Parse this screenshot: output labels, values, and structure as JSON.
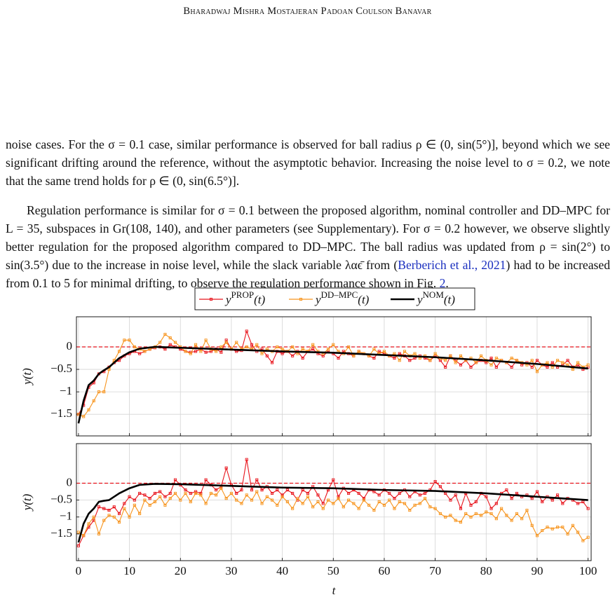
{
  "header": {
    "title": "Bharadwaj Mishra Mostajeran Padoan Coulson Banavar"
  },
  "paragraphs": [
    [
      "noise cases. For the σ = 0.1 case, similar performance is observed for ball radius ρ ∈ (0, sin(5°)], beyond which we see significant drifting around the reference, without the asymptotic behavior. Increasing the noise level to σ = 0.2, we note that the same trend holds for ρ ∈ (0, sin(6.5°)]."
    ],
    [
      "Regulation performance is similar for σ = 0.1 between the proposed algorithm, nominal controller and DD–MPC for L = 35, subspaces in Gr(108, 140), and other parameters (see Supplementary). For σ = 0.2 however, we observe slightly better regulation for the proposed algorithm compared to DD–MPC. The ball radius was updated from ρ = sin(2°) to sin(3.5°) due to the increase in noise level, while the slack variable λαϵ̄ from (",
      "Berberich et al., 2021",
      ") had to be increased from 0.1 to 5 for minimal drifting, to observe the regulation performance shown in Fig. ",
      "2",
      "."
    ]
  ],
  "chart_data": [
    {
      "type": "line",
      "ylabel": "y(t)",
      "legend": "top",
      "grid": true,
      "xtick_labels": false,
      "hline": 0,
      "hline_color": "#e8141c",
      "xlim": [
        -0.4,
        100.6
      ],
      "ylim": [
        -1.98,
        0.67
      ],
      "xticks": [
        0,
        10,
        20,
        30,
        40,
        50,
        60,
        70,
        80,
        90,
        100
      ],
      "yticks": [
        0,
        {
          "value": -0.5,
          "label": "−0.5"
        },
        {
          "value": -1,
          "label": "−1"
        },
        {
          "value": -1.5,
          "label": "−1.5"
        }
      ],
      "x": [
        0,
        1,
        2,
        3,
        4,
        5,
        6,
        7,
        8,
        9,
        10,
        11,
        12,
        13,
        14,
        15,
        16,
        17,
        18,
        19,
        20,
        21,
        22,
        23,
        24,
        25,
        26,
        27,
        28,
        29,
        30,
        31,
        32,
        33,
        34,
        35,
        36,
        37,
        38,
        39,
        40,
        41,
        42,
        43,
        44,
        45,
        46,
        47,
        48,
        49,
        50,
        51,
        52,
        53,
        54,
        55,
        56,
        57,
        58,
        59,
        60,
        61,
        62,
        63,
        64,
        65,
        66,
        67,
        68,
        69,
        70,
        71,
        72,
        73,
        74,
        75,
        76,
        77,
        78,
        79,
        80,
        81,
        82,
        83,
        84,
        85,
        86,
        87,
        88,
        89,
        90,
        91,
        92,
        93,
        94,
        95,
        96,
        97,
        98,
        99,
        100
      ],
      "series": [
        {
          "name": "yPROP(t)",
          "color": "#e8141c",
          "marker": true,
          "values": [
            -1.5,
            -1.3,
            -0.9,
            -0.8,
            -0.6,
            -0.55,
            -0.45,
            -0.35,
            -0.3,
            -0.2,
            -0.15,
            -0.1,
            -0.15,
            -0.1,
            -0.05,
            -0.02,
            0.0,
            -0.05,
            0.05,
            0.0,
            -0.05,
            -0.1,
            -0.12,
            -0.1,
            -0.05,
            -0.12,
            -0.1,
            -0.05,
            -0.12,
            0.15,
            -0.05,
            -0.1,
            -0.08,
            0.35,
            0.05,
            -0.1,
            -0.05,
            -0.2,
            -0.35,
            -0.1,
            -0.15,
            -0.1,
            -0.2,
            -0.1,
            -0.25,
            -0.1,
            -0.05,
            -0.15,
            -0.2,
            -0.1,
            -0.15,
            -0.25,
            -0.1,
            -0.15,
            -0.2,
            -0.1,
            -0.15,
            -0.2,
            -0.25,
            -0.1,
            -0.15,
            -0.2,
            -0.25,
            -0.15,
            -0.2,
            -0.3,
            -0.25,
            -0.2,
            -0.25,
            -0.3,
            -0.2,
            -0.3,
            -0.45,
            -0.2,
            -0.3,
            -0.4,
            -0.3,
            -0.45,
            -0.35,
            -0.3,
            -0.35,
            -0.25,
            -0.45,
            -0.3,
            -0.35,
            -0.45,
            -0.3,
            -0.4,
            -0.35,
            -0.45,
            -0.3,
            -0.4,
            -0.45,
            -0.35,
            -0.45,
            -0.4,
            -0.3,
            -0.45,
            -0.4,
            -0.5,
            -0.45
          ]
        },
        {
          "name": "yDD–MPC(t)",
          "color": "#f7941d",
          "marker": true,
          "values": [
            -1.5,
            -1.55,
            -1.4,
            -1.2,
            -1.0,
            -1.0,
            -0.5,
            -0.3,
            -0.1,
            0.15,
            0.15,
            0.0,
            -0.05,
            -0.1,
            -0.05,
            0.0,
            0.1,
            0.28,
            0.2,
            0.1,
            0.0,
            -0.1,
            -0.15,
            0.05,
            -0.1,
            0.15,
            -0.05,
            -0.1,
            0.0,
            0.1,
            -0.05,
            0.1,
            -0.05,
            0.0,
            -0.05,
            0.05,
            -0.15,
            -0.05,
            -0.1,
            0.0,
            -0.05,
            -0.1,
            0.0,
            -0.15,
            -0.05,
            -0.1,
            0.05,
            -0.1,
            -0.15,
            -0.05,
            0.05,
            -0.1,
            -0.15,
            0.0,
            -0.2,
            -0.1,
            -0.15,
            -0.2,
            -0.05,
            -0.15,
            -0.1,
            -0.2,
            -0.15,
            -0.3,
            -0.1,
            -0.2,
            -0.15,
            -0.25,
            -0.2,
            -0.3,
            -0.15,
            -0.25,
            -0.3,
            -0.2,
            -0.35,
            -0.2,
            -0.3,
            -0.25,
            -0.35,
            -0.2,
            -0.3,
            -0.4,
            -0.25,
            -0.3,
            -0.35,
            -0.25,
            -0.3,
            -0.35,
            -0.4,
            -0.3,
            -0.55,
            -0.4,
            -0.35,
            -0.45,
            -0.3,
            -0.35,
            -0.4,
            -0.5,
            -0.35,
            -0.45,
            -0.4
          ]
        },
        {
          "name": "yNOM(t)",
          "color": "#000000",
          "marker": false,
          "x": [
            0,
            1,
            2,
            3,
            4,
            5,
            6,
            8,
            10,
            12,
            15,
            20,
            30,
            40,
            50,
            60,
            70,
            80,
            90,
            100
          ],
          "values": [
            -1.7,
            -1.2,
            -0.85,
            -0.75,
            -0.6,
            -0.52,
            -0.45,
            -0.25,
            -0.12,
            -0.04,
            0,
            -0.02,
            -0.06,
            -0.1,
            -0.13,
            -0.18,
            -0.23,
            -0.3,
            -0.38,
            -0.48
          ]
        }
      ]
    },
    {
      "type": "line",
      "ylabel": "y(t)",
      "xlabel": "t",
      "grid": true,
      "hline": 0,
      "hline_color": "#e8141c",
      "xlim": [
        -0.4,
        100.6
      ],
      "ylim": [
        -2.29,
        1.17
      ],
      "xticks": [
        0,
        10,
        20,
        30,
        40,
        50,
        60,
        70,
        80,
        90,
        100
      ],
      "yticks": [
        0,
        {
          "value": -0.5,
          "label": "−0.5"
        },
        {
          "value": -1,
          "label": "−1"
        },
        {
          "value": -1.5,
          "label": "−1.5"
        }
      ],
      "x": [
        0,
        1,
        2,
        3,
        4,
        5,
        6,
        7,
        8,
        9,
        10,
        11,
        12,
        13,
        14,
        15,
        16,
        17,
        18,
        19,
        20,
        21,
        22,
        23,
        24,
        25,
        26,
        27,
        28,
        29,
        30,
        31,
        32,
        33,
        34,
        35,
        36,
        37,
        38,
        39,
        40,
        41,
        42,
        43,
        44,
        45,
        46,
        47,
        48,
        49,
        50,
        51,
        52,
        53,
        54,
        55,
        56,
        57,
        58,
        59,
        60,
        61,
        62,
        63,
        64,
        65,
        66,
        67,
        68,
        69,
        70,
        71,
        72,
        73,
        74,
        75,
        76,
        77,
        78,
        79,
        80,
        81,
        82,
        83,
        84,
        85,
        86,
        87,
        88,
        89,
        90,
        91,
        92,
        93,
        94,
        95,
        96,
        97,
        98,
        99,
        100
      ],
      "series": [
        {
          "name": "yPROP(t)",
          "color": "#e8141c",
          "marker": true,
          "values": [
            -1.85,
            -1.55,
            -1.3,
            -1.1,
            -0.7,
            -0.75,
            -0.8,
            -0.7,
            -0.9,
            -0.6,
            -0.4,
            -0.5,
            -0.3,
            -0.35,
            -0.45,
            -0.3,
            -0.25,
            -0.4,
            -0.3,
            0.1,
            -0.05,
            -0.2,
            -0.3,
            -0.25,
            -0.3,
            0.1,
            -0.05,
            -0.2,
            -0.1,
            0.45,
            -0.05,
            -0.3,
            -0.2,
            0.7,
            -0.2,
            0.1,
            -0.2,
            -0.1,
            -0.3,
            -0.2,
            -0.35,
            -0.2,
            -0.3,
            -0.5,
            -0.2,
            -0.3,
            -0.1,
            -0.35,
            -0.6,
            -0.2,
            0.1,
            -0.4,
            -0.15,
            -0.3,
            -0.2,
            -0.3,
            -0.45,
            -0.2,
            -0.25,
            -0.35,
            -0.2,
            -0.3,
            -0.45,
            -0.3,
            -0.2,
            -0.4,
            -0.25,
            -0.35,
            -0.3,
            -0.2,
            0.05,
            -0.1,
            -0.3,
            -0.5,
            -0.35,
            -0.75,
            -0.3,
            -0.65,
            -0.55,
            -0.3,
            -0.4,
            -0.75,
            -0.6,
            -0.3,
            -0.2,
            -0.45,
            -0.3,
            -0.4,
            -0.35,
            -0.45,
            -0.25,
            -0.55,
            -0.4,
            -0.5,
            -0.35,
            -0.6,
            -0.45,
            -0.5,
            -0.6,
            -0.55,
            -0.75
          ]
        },
        {
          "name": "yDD–MPC(t)",
          "color": "#f7941d",
          "marker": true,
          "values": [
            -1.45,
            -1.55,
            -1.2,
            -1.0,
            -1.5,
            -1.1,
            -0.95,
            -1.0,
            -1.15,
            -0.75,
            -1.0,
            -0.65,
            -0.9,
            -0.5,
            -0.65,
            -0.55,
            -0.4,
            -0.65,
            -0.45,
            -0.3,
            -0.5,
            -0.3,
            -0.55,
            -0.3,
            -0.35,
            -0.6,
            -0.3,
            -0.35,
            -0.15,
            -0.45,
            -0.3,
            -0.5,
            -0.6,
            -0.35,
            -0.5,
            -0.25,
            -0.6,
            -0.4,
            -0.5,
            -0.65,
            -0.4,
            -0.55,
            -0.75,
            -0.45,
            -0.6,
            -0.4,
            -0.7,
            -0.55,
            -0.75,
            -0.5,
            -0.6,
            -0.45,
            -0.7,
            -0.5,
            -0.6,
            -0.75,
            -0.5,
            -0.65,
            -0.8,
            -0.55,
            -0.65,
            -0.5,
            -0.75,
            -0.55,
            -0.6,
            -0.8,
            -0.65,
            -0.6,
            -0.45,
            -0.7,
            -0.75,
            -0.9,
            -1.0,
            -0.95,
            -1.1,
            -1.15,
            -0.9,
            -1.0,
            -0.9,
            -0.95,
            -0.85,
            -0.9,
            -1.05,
            -0.75,
            -0.95,
            -1.1,
            -0.9,
            -1.05,
            -0.8,
            -1.25,
            -1.55,
            -1.4,
            -1.3,
            -1.35,
            -1.3,
            -1.3,
            -1.5,
            -1.25,
            -1.45,
            -1.7,
            -1.6
          ]
        },
        {
          "name": "yNOM(t)",
          "color": "#000000",
          "marker": false,
          "x": [
            0,
            1,
            2,
            3,
            4,
            5,
            6,
            8,
            10,
            12,
            15,
            20,
            30,
            40,
            50,
            60,
            70,
            80,
            90,
            100
          ],
          "values": [
            -1.75,
            -1.2,
            -0.9,
            -0.75,
            -0.55,
            -0.52,
            -0.5,
            -0.3,
            -0.15,
            -0.05,
            -0.02,
            -0.03,
            -0.08,
            -0.13,
            -0.15,
            -0.2,
            -0.23,
            -0.3,
            -0.4,
            -0.5
          ]
        }
      ]
    }
  ]
}
